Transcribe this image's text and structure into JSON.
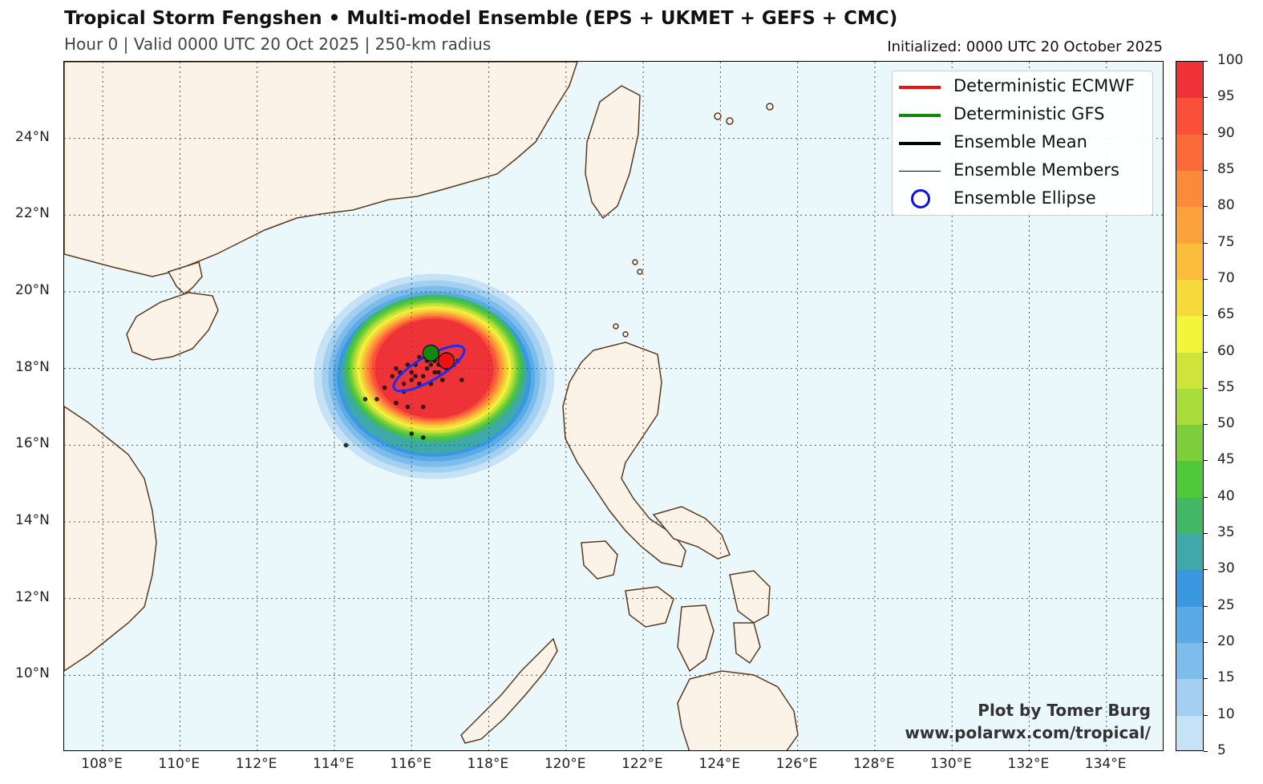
{
  "header": {
    "title": "Tropical Storm Fengshen • Multi-model Ensemble (EPS + UKMET + GEFS + CMC)",
    "subtitle": "Hour 0 | Valid 0000 UTC 20 Oct 2025 | 250-km radius",
    "initialized": "Initialized: 0000 UTC 20 October 2025"
  },
  "map": {
    "lon_range": [
      107.0,
      135.5
    ],
    "lat_range": [
      8.0,
      26.0
    ],
    "lon_ticks": [
      "108°E",
      "110°E",
      "112°E",
      "114°E",
      "116°E",
      "118°E",
      "120°E",
      "122°E",
      "124°E",
      "126°E",
      "128°E",
      "130°E",
      "132°E",
      "134°E"
    ],
    "lat_ticks": [
      "24°N",
      "22°N",
      "20°N",
      "18°N",
      "16°N",
      "14°N",
      "12°N",
      "10°N"
    ],
    "colors": {
      "ocean": "#eaf8fc",
      "land": "#fbf3e8",
      "coast": "#5a3a1e",
      "grid": "#555555"
    },
    "strike_probability_center": {
      "lon": 116.5,
      "lat": 18.0
    },
    "ellipse": {
      "center_lon": 116.45,
      "center_lat": 18.0,
      "color": "#1e2ef0"
    },
    "deterministic_ecmwf": {
      "lon": 116.9,
      "lat": 18.2,
      "color": "#ee1111"
    },
    "deterministic_gfs": {
      "lon": 116.5,
      "lat": 18.4,
      "color": "#118811"
    },
    "ensemble_member_positions": [
      [
        115.3,
        17.5
      ],
      [
        115.1,
        17.2
      ],
      [
        115.6,
        17.1
      ],
      [
        115.9,
        17.0
      ],
      [
        116.3,
        17.0
      ],
      [
        114.3,
        16.0
      ],
      [
        116.0,
        16.3
      ],
      [
        116.3,
        16.2
      ],
      [
        115.5,
        17.8
      ],
      [
        115.8,
        17.6
      ],
      [
        116.0,
        17.9
      ],
      [
        116.3,
        17.8
      ],
      [
        116.1,
        18.1
      ],
      [
        116.4,
        18.0
      ],
      [
        116.7,
        18.1
      ],
      [
        116.2,
        18.3
      ],
      [
        116.6,
        17.9
      ],
      [
        117.1,
        18.1
      ],
      [
        117.3,
        17.7
      ],
      [
        115.9,
        18.1
      ],
      [
        116.5,
        17.6
      ],
      [
        116.8,
        17.7
      ],
      [
        115.7,
        17.9
      ],
      [
        116.9,
        18.0
      ],
      [
        117.0,
        18.2
      ],
      [
        116.0,
        17.7
      ],
      [
        115.6,
        18.0
      ],
      [
        116.4,
        18.2
      ],
      [
        116.2,
        17.6
      ],
      [
        116.7,
        17.9
      ],
      [
        117.2,
        18.2
      ],
      [
        114.8,
        17.2
      ],
      [
        115.8,
        17.4
      ],
      [
        116.5,
        18.1
      ],
      [
        116.1,
        17.8
      ],
      [
        116.6,
        18.2
      ]
    ]
  },
  "legend": {
    "items": [
      {
        "label": "Deterministic ECMWF",
        "color": "#ee1111",
        "kind": "line-thick"
      },
      {
        "label": "Deterministic GFS",
        "color": "#118811",
        "kind": "line-thick"
      },
      {
        "label": "Ensemble Mean",
        "color": "#000000",
        "kind": "line-thick"
      },
      {
        "label": "Ensemble Members",
        "color": "#000000",
        "kind": "line-thin"
      },
      {
        "label": "Ensemble Ellipse",
        "color": "#1010e0",
        "kind": "ring"
      }
    ]
  },
  "colorbar": {
    "ticks": [
      "100",
      "95",
      "90",
      "85",
      "80",
      "75",
      "70",
      "65",
      "60",
      "55",
      "50",
      "45",
      "40",
      "35",
      "30",
      "25",
      "20",
      "15",
      "10",
      "5"
    ],
    "colors": [
      "#ee3338",
      "#fa4f38",
      "#fb6b3a",
      "#fb8a3a",
      "#fba23a",
      "#fbbd3a",
      "#f6d93a",
      "#f3f53a",
      "#cfe43a",
      "#a8dc3a",
      "#7ccf3a",
      "#4fc83a",
      "#42b866",
      "#3fa8a8",
      "#3a98e0",
      "#5aaae6",
      "#7dbdec",
      "#a3d0f1",
      "#c5e2f6"
    ]
  },
  "credit": {
    "line1": "Plot by Tomer Burg",
    "line2": "www.polarwx.com/tropical/"
  }
}
